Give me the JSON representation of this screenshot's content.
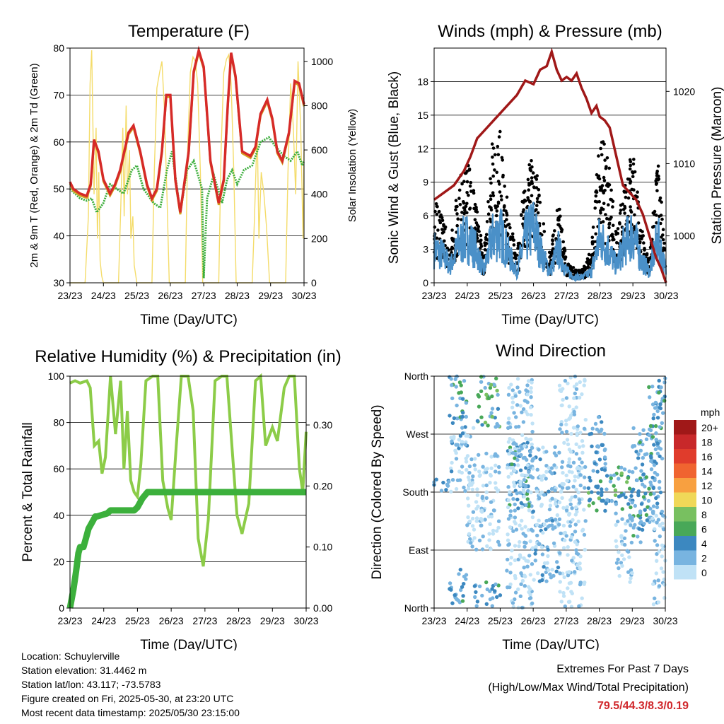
{
  "colors": {
    "temp2m": "#d4a020",
    "temp9m": "#d62a28",
    "dewpoint": "#3cae3c",
    "solar": "#f4dc6a",
    "sonic_wind": "#4a90c8",
    "gust": "#000000",
    "pressure": "#a01818",
    "rh": "#8ccc48",
    "precip": "#3cb03c",
    "extremes": "#d0282c"
  },
  "chart_data": [
    {
      "id": "temperature",
      "type": "line",
      "title": "Temperature (F)",
      "xlabel": "Time (Day/UTC)",
      "ylabel": "2m & 9m T (Red, Orange) & 2m Td (Green)",
      "y2label": "Solar Insolation (Yellow)",
      "x_ticks": [
        "23/23",
        "24/23",
        "25/23",
        "26/23",
        "27/23",
        "28/23",
        "29/23",
        "30/23"
      ],
      "xlim": [
        0,
        7
      ],
      "ylim": [
        30,
        80
      ],
      "y_ticks": [
        30,
        40,
        50,
        60,
        70,
        80
      ],
      "y2lim": [
        0,
        1060
      ],
      "y2_ticks": [
        0,
        200,
        400,
        600,
        800,
        1000
      ],
      "grid": true,
      "series": [
        {
          "key": "temp",
          "x": [
            0,
            0.1,
            0.3,
            0.5,
            0.62,
            0.72,
            0.85,
            1.0,
            1.2,
            1.35,
            1.5,
            1.75,
            1.9,
            2.1,
            2.3,
            2.45,
            2.6,
            2.75,
            2.88,
            3.0,
            3.15,
            3.3,
            3.55,
            3.7,
            3.85,
            4.0,
            4.2,
            4.45,
            4.6,
            4.72,
            4.82,
            4.95,
            5.15,
            5.4,
            5.55,
            5.7,
            5.9,
            6.05,
            6.2,
            6.35,
            6.55,
            6.72,
            6.85,
            7.0
          ],
          "y": [
            51.5,
            50,
            49,
            48.5,
            51,
            60.5,
            58,
            52,
            49,
            51,
            54,
            62,
            63.5,
            58,
            51,
            48,
            50,
            58,
            70,
            70,
            52,
            45,
            58,
            75,
            79.5,
            76,
            56,
            47,
            52,
            68,
            79,
            74,
            58,
            57,
            59,
            66,
            69,
            65,
            58,
            56,
            62,
            73,
            72.5,
            68
          ]
        },
        {
          "key": "dewpoint",
          "x": [
            0,
            0.3,
            0.5,
            0.65,
            0.8,
            1.0,
            1.2,
            1.4,
            1.6,
            1.85,
            2.0,
            2.2,
            2.5,
            2.7,
            2.9,
            3.05,
            3.3,
            3.5,
            3.7,
            3.95,
            4.0,
            4.1,
            4.3,
            4.55,
            4.7,
            4.85,
            5.0,
            5.2,
            5.45,
            5.7,
            5.95,
            6.15,
            6.4,
            6.6,
            6.8,
            6.95,
            7.0
          ],
          "y": [
            50,
            48,
            47.5,
            48,
            45,
            47,
            51,
            50,
            49,
            54,
            55,
            50,
            47,
            46,
            54,
            58,
            45,
            54,
            56,
            50,
            31,
            48,
            53,
            47,
            52,
            54,
            51,
            54,
            55,
            60,
            61,
            59,
            57,
            56,
            58,
            55,
            56
          ]
        },
        {
          "key": "solar",
          "x": [
            0,
            0.45,
            0.55,
            0.6,
            0.65,
            0.72,
            0.78,
            0.82,
            0.86,
            0.9,
            0.95,
            1.0,
            1.45,
            1.52,
            1.58,
            1.62,
            1.68,
            1.72,
            1.78,
            1.82,
            1.88,
            1.92,
            2.0,
            2.45,
            2.52,
            2.6,
            2.68,
            2.75,
            2.82,
            2.9,
            2.97,
            3.45,
            3.52,
            3.6,
            3.68,
            3.75,
            3.82,
            3.9,
            3.97,
            4.45,
            4.52,
            4.6,
            4.68,
            4.75,
            4.82,
            4.9,
            4.97,
            5.45,
            5.52,
            5.6,
            5.65,
            5.72,
            5.8,
            5.88,
            5.97,
            6.45,
            6.52,
            6.6,
            6.68,
            6.75,
            6.82,
            6.9,
            6.97,
            7.0
          ],
          "y2": [
            0,
            0,
            300,
            900,
            1050,
            400,
            700,
            200,
            500,
            100,
            30,
            0,
            0,
            350,
            700,
            300,
            800,
            400,
            600,
            200,
            300,
            80,
            0,
            0,
            500,
            880,
            950,
            1000,
            800,
            400,
            0,
            0,
            600,
            950,
            1020,
            1000,
            900,
            500,
            0,
            0,
            600,
            950,
            1010,
            1030,
            900,
            500,
            0,
            0,
            300,
            700,
            200,
            500,
            400,
            250,
            0,
            0,
            500,
            900,
            700,
            400,
            1000,
            700,
            200,
            600
          ]
        }
      ]
    },
    {
      "id": "winds",
      "type": "scatter",
      "title": "Winds (mph) & Pressure (mb)",
      "xlabel": "Time (Day/UTC)",
      "ylabel": "Sonic Wind & Gust (Blue, Black)",
      "y2label": "Station Pressure (Maroon)",
      "x_ticks": [
        "23/23",
        "24/23",
        "25/23",
        "26/23",
        "27/23",
        "28/23",
        "29/23",
        "30/23"
      ],
      "xlim": [
        0,
        7
      ],
      "ylim": [
        0,
        21
      ],
      "y_ticks": [
        0,
        3,
        6,
        9,
        12,
        15,
        18
      ],
      "y2lim": [
        993.5,
        1026
      ],
      "y2_ticks": [
        1000,
        1010,
        1020
      ],
      "grid": true,
      "series": [
        {
          "key": "sonic",
          "x": [
            0,
            0.25,
            0.5,
            0.75,
            1.0,
            1.25,
            1.5,
            1.75,
            2.0,
            2.25,
            2.5,
            2.75,
            3.0,
            3.25,
            3.5,
            3.75,
            4.0,
            4.25,
            4.5,
            4.75,
            5.0,
            5.25,
            5.5,
            5.75,
            6.0,
            6.25,
            6.5,
            6.75,
            7.0
          ],
          "y": [
            3,
            2.5,
            1.5,
            3.5,
            4,
            3,
            1,
            4,
            4.5,
            2.5,
            1,
            4,
            5,
            2.5,
            1,
            3,
            1,
            0.5,
            0.5,
            1,
            4,
            3,
            1.5,
            3.5,
            4.5,
            2,
            1,
            4,
            1
          ]
        },
        {
          "key": "gust",
          "x": [
            0,
            0.25,
            0.5,
            0.75,
            1.0,
            1.25,
            1.5,
            1.75,
            2.0,
            2.25,
            2.5,
            2.75,
            3.0,
            3.25,
            3.5,
            3.75,
            4.0,
            4.25,
            4.5,
            4.75,
            5.0,
            5.25,
            5.5,
            5.75,
            6.0,
            6.25,
            6.5,
            6.75,
            7.0
          ],
          "y": [
            6,
            5,
            3,
            7.5,
            9,
            6,
            2,
            10,
            11,
            5,
            2,
            8,
            10,
            5,
            2,
            6,
            1.5,
            1,
            1,
            2.5,
            11,
            9,
            4,
            7,
            10,
            4,
            2,
            9,
            2
          ]
        },
        {
          "key": "pressure",
          "x": [
            0,
            0.3,
            0.6,
            0.9,
            1.1,
            1.3,
            1.5,
            1.8,
            2.0,
            2.3,
            2.5,
            2.75,
            3.0,
            3.2,
            3.4,
            3.55,
            3.7,
            3.85,
            4.0,
            4.15,
            4.3,
            4.45,
            4.6,
            4.75,
            4.9,
            5.0,
            5.15,
            5.3,
            5.5,
            5.7,
            5.9,
            6.1,
            6.3,
            6.5,
            6.7,
            6.85,
            7.0
          ],
          "y2": [
            1005,
            1006,
            1007,
            1009,
            1011,
            1013.5,
            1014.5,
            1016,
            1017,
            1018.5,
            1019.5,
            1021.5,
            1021,
            1023,
            1023.5,
            1025.5,
            1023,
            1021.5,
            1022,
            1021.5,
            1022.5,
            1020.5,
            1019,
            1017,
            1018,
            1016.5,
            1016,
            1015,
            1011,
            1007,
            1006,
            1005,
            1003,
            1000,
            997,
            995.5,
            993.5
          ]
        }
      ]
    },
    {
      "id": "humidity",
      "type": "line",
      "title": "Relative Humidity (%) & Precipitation (in)",
      "xlabel": "Time (Day/UTC)",
      "ylabel": "Percent & Total Rainfall",
      "x_ticks": [
        "23/23",
        "24/23",
        "25/23",
        "26/23",
        "27/23",
        "28/23",
        "29/23",
        "30/23"
      ],
      "xlim": [
        0,
        7
      ],
      "ylim": [
        0,
        100
      ],
      "y_ticks": [
        0,
        20,
        40,
        60,
        80,
        100
      ],
      "y2lim": [
        0,
        0.38
      ],
      "y2_ticks": [
        "0.00",
        "0.10",
        "0.20",
        "0.30"
      ],
      "grid": true,
      "series": [
        {
          "key": "rh",
          "x": [
            0,
            0.15,
            0.3,
            0.5,
            0.6,
            0.72,
            0.85,
            0.95,
            1.05,
            1.2,
            1.35,
            1.5,
            1.6,
            1.7,
            1.8,
            1.9,
            2.0,
            2.1,
            2.25,
            2.45,
            2.6,
            2.75,
            2.9,
            3.0,
            3.15,
            3.3,
            3.5,
            3.65,
            3.8,
            3.95,
            4.1,
            4.3,
            4.5,
            4.65,
            4.8,
            4.95,
            5.1,
            5.3,
            5.5,
            5.65,
            5.8,
            6.0,
            6.15,
            6.35,
            6.5,
            6.65,
            6.8,
            6.9,
            7.0
          ],
          "y": [
            97,
            98,
            97,
            98,
            95,
            70,
            72,
            58,
            65,
            100,
            75,
            98,
            60,
            85,
            55,
            50,
            48,
            62,
            98,
            100,
            100,
            55,
            43,
            38,
            70,
            100,
            100,
            85,
            30,
            18,
            38,
            98,
            100,
            100,
            70,
            40,
            32,
            45,
            98,
            100,
            70,
            78,
            72,
            95,
            100,
            100,
            60,
            50,
            76
          ]
        },
        {
          "key": "precip",
          "x": [
            0,
            0.1,
            0.18,
            0.25,
            0.3,
            0.4,
            0.5,
            0.55,
            0.65,
            0.75,
            0.8,
            1.1,
            1.2,
            1.5,
            1.9,
            2.0,
            2.15,
            2.3,
            2.4,
            7.0
          ],
          "y2": [
            0,
            0.03,
            0.06,
            0.09,
            0.1,
            0.1,
            0.12,
            0.13,
            0.14,
            0.15,
            0.15,
            0.155,
            0.16,
            0.16,
            0.16,
            0.165,
            0.18,
            0.19,
            0.19,
            0.19
          ]
        }
      ]
    },
    {
      "id": "direction",
      "type": "scatter",
      "title": "Wind Direction",
      "xlabel": "Time (Day/UTC)",
      "ylabel": "Direction (Colored By Speed)",
      "x_ticks": [
        "23/23",
        "24/23",
        "25/23",
        "26/23",
        "27/23",
        "28/23",
        "29/23",
        "30/23"
      ],
      "xlim": [
        0,
        7
      ],
      "ylim": [
        0,
        360
      ],
      "y_ticks": [
        "North",
        "East",
        "South",
        "West",
        "North"
      ],
      "grid": true,
      "legend": {
        "title": "mph",
        "labels": [
          "20+",
          "18",
          "16",
          "14",
          "12",
          "10",
          "8",
          "6",
          "4",
          "2",
          "0"
        ],
        "colors": [
          "#a01818",
          "#c8282a",
          "#e03c2c",
          "#f06430",
          "#f8a040",
          "#f0d858",
          "#78c060",
          "#48a858",
          "#3c88c0",
          "#78b4e0",
          "#c0e2f6"
        ]
      },
      "clusters": [
        {
          "x": [
            0,
            0.45
          ],
          "y": [
            170,
            200
          ],
          "speed": [
            2,
            5
          ]
        },
        {
          "x": [
            0.45,
            1.0
          ],
          "y": [
            280,
            360
          ],
          "speed": [
            1,
            7
          ]
        },
        {
          "x": [
            0.45,
            1.0
          ],
          "y": [
            0,
            60
          ],
          "speed": [
            1,
            6
          ]
        },
        {
          "x": [
            0.5,
            1.2
          ],
          "y": [
            180,
            280
          ],
          "speed": [
            0,
            4
          ]
        },
        {
          "x": [
            1.3,
            2.0
          ],
          "y": [
            280,
            360
          ],
          "speed": [
            2,
            8
          ]
        },
        {
          "x": [
            1.2,
            2.0
          ],
          "y": [
            0,
            40
          ],
          "speed": [
            1,
            6
          ]
        },
        {
          "x": [
            1.0,
            2.0
          ],
          "y": [
            90,
            240
          ],
          "speed": [
            0,
            2
          ]
        },
        {
          "x": [
            2.2,
            3.0
          ],
          "y": [
            150,
            260
          ],
          "speed": [
            1,
            6
          ]
        },
        {
          "x": [
            2.2,
            3.0
          ],
          "y": [
            0,
            360
          ],
          "speed": [
            0,
            3
          ]
        },
        {
          "x": [
            3.0,
            3.8
          ],
          "y": [
            40,
            250
          ],
          "speed": [
            0,
            4
          ]
        },
        {
          "x": [
            3.8,
            4.6
          ],
          "y": [
            0,
            360
          ],
          "speed": [
            0,
            2
          ]
        },
        {
          "x": [
            4.6,
            5.2
          ],
          "y": [
            150,
            200
          ],
          "speed": [
            3,
            8
          ]
        },
        {
          "x": [
            4.7,
            5.2
          ],
          "y": [
            200,
            300
          ],
          "speed": [
            1,
            5
          ]
        },
        {
          "x": [
            5.2,
            6.0
          ],
          "y": [
            150,
            220
          ],
          "speed": [
            2,
            8
          ]
        },
        {
          "x": [
            5.5,
            6.0
          ],
          "y": [
            40,
            150
          ],
          "speed": [
            0,
            3
          ]
        },
        {
          "x": [
            6.0,
            6.9
          ],
          "y": [
            100,
            280
          ],
          "speed": [
            1,
            6
          ]
        },
        {
          "x": [
            6.5,
            7.0
          ],
          "y": [
            220,
            360
          ],
          "speed": [
            1,
            6
          ]
        },
        {
          "x": [
            6.6,
            7.0
          ],
          "y": [
            0,
            150
          ],
          "speed": [
            0,
            3
          ]
        }
      ]
    }
  ],
  "footer": {
    "location": "Location: Schuylerville",
    "elevation": "Station elevation: 31.4462 m",
    "latlon": "Station lat/lon: 43.117; -73.5783",
    "created": "Figure created on Fri, 2025-05-30, at 23:20 UTC",
    "recent": "Most recent data timestamp: 2025/05/30 23:15:00",
    "extremes_title": "Extremes For Past 7 Days",
    "extremes_subtitle": "(High/Low/Max Wind/Total Precipitation)",
    "extremes_value": "79.5/44.3/8.3/0.19"
  }
}
